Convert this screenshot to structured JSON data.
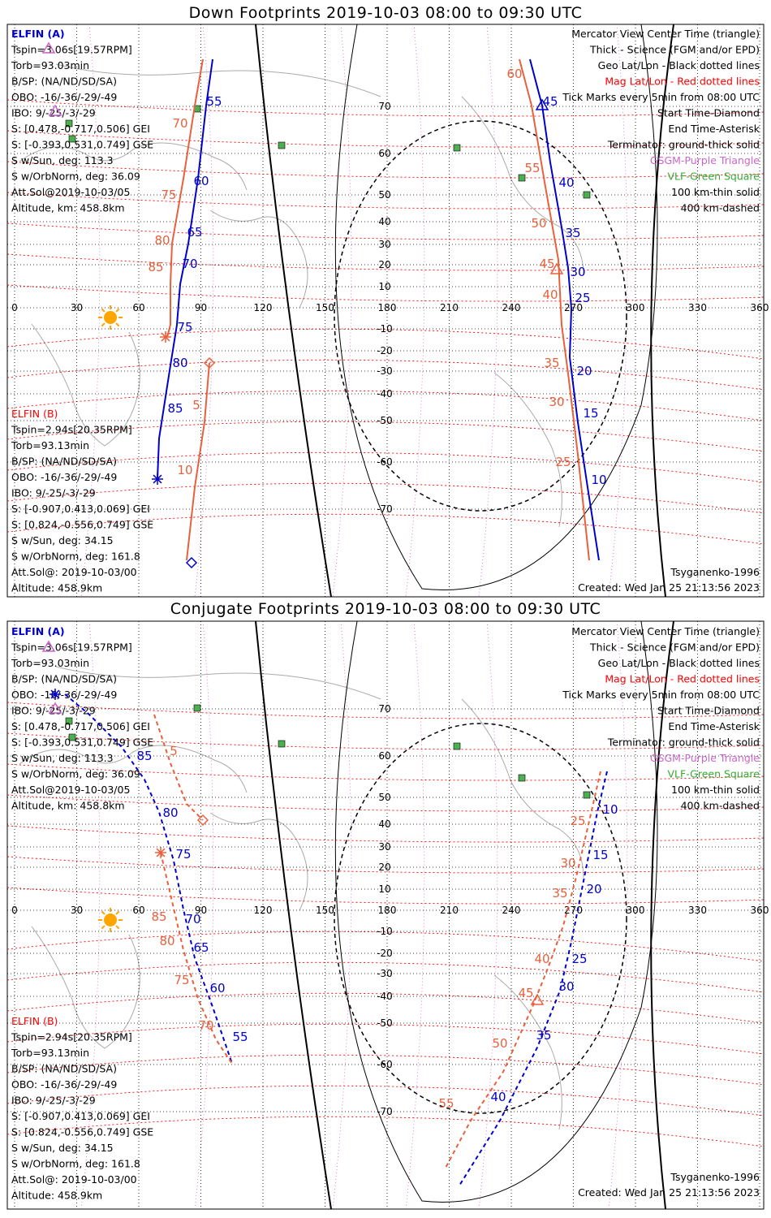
{
  "colors": {
    "sc_a": "#0000cc",
    "sc_b": "#e8603c",
    "geo_grid": "#000000",
    "mag_grid": "#ff0000",
    "gsgm": "#cc66cc",
    "vlf": "#4caf50",
    "sun": "#ffa500",
    "coast": "#aaaaaa"
  },
  "axis": {
    "lon_ticks": [
      "0",
      "30",
      "60",
      "90",
      "120",
      "150",
      "180",
      "210",
      "240",
      "270",
      "300",
      "330",
      "360"
    ],
    "lat_ticks": [
      "70",
      "60",
      "50",
      "40",
      "30",
      "20",
      "10",
      "-10",
      "-20",
      "-30",
      "-40",
      "-50",
      "-60",
      "-70"
    ]
  },
  "panels": [
    {
      "title": "Down Footprints 2019-10-03 08:00 to 09:30 UTC",
      "info_a": [
        "ELFIN (A)",
        "Tspin=3.06s[19.57RPM]",
        "Torb=93.03min",
        "B/SP: (NA/ND/SD/SA)",
        "OBO: -16/-36/-29/-49",
        "IBO: 9/-25/-3/-29",
        "S: [0.478,-0.717,0.506] GEI",
        "S: [-0.393,0.531,0.749] GSE",
        "S w/Sun, deg: 113.3",
        "S w/OrbNorm, deg: 36.09",
        "Att.Sol@2019-10-03/05",
        "Altitude, km: 458.8km"
      ],
      "info_b": [
        "ELFIN (B)",
        "Tspin=2.94s[20.35RPM]",
        "Torb=93.13min",
        "B/SP: (NA/ND/SD/SA)",
        "OBO: -16/-36/-29/-49",
        "IBO: 9/-25/-3/-29",
        "S: [-0.907,0.413,0.069] GEI",
        "S: [0.824,-0.556,0.749] GSE",
        "S w/Sun, deg: 34.15",
        "S w/OrbNorm, deg: 161.8",
        "Att.Sol@: 2019-10-03/00",
        "Altitude: 458.9km"
      ],
      "legend": [
        "Mercator View Center Time (triangle)",
        "Thick - Science (FGM and/or EPD)",
        "Geo Lat/Lon - Black dotted lines",
        "Mag Lat/Lon - Red dotted lines",
        "Tick Marks every 5min from 08:00 UTC",
        "Start Time-Diamond",
        "End Time-Asterisk",
        "Terminator: ground-thick solid",
        "GSGM-Purple Triangle",
        "VLF-Green Square",
        "100 km-thin solid",
        "400 km-dashed"
      ],
      "model": "Tsyganenko-1996",
      "created": "Created: Wed Jan 25 21:13:56 2023",
      "tick_labels_a": [
        "55",
        "60",
        "65",
        "70",
        "75",
        "80",
        "85",
        "45",
        "40",
        "35",
        "30",
        "25",
        "20",
        "15",
        "10"
      ],
      "tick_labels_b": [
        "70",
        "75",
        "80",
        "85",
        "5",
        "10",
        "60",
        "55",
        "50",
        "45",
        "40",
        "35",
        "30",
        "25"
      ]
    },
    {
      "title": "Conjugate Footprints 2019-10-03 08:00 to 09:30 UTC",
      "info_a": [
        "ELFIN (A)",
        "Tspin=3.06s[19.57RPM]",
        "Torb=93.03min",
        "B/SP: (NA/ND/SD/SA)",
        "OBO: -16/-36/-29/-49",
        "IBO: 9/-25/-3/-29",
        "S: [0.478,-0.717,0.506] GEI",
        "S: [-0.393,0.531,0.749] GSE",
        "S w/Sun, deg: 113.3",
        "S w/OrbNorm, deg: 36.09",
        "Att.Sol@2019-10-03/05",
        "Altitude, km: 458.8km"
      ],
      "info_b": [
        "ELFIN (B)",
        "Tspin=2.94s[20.35RPM]",
        "Torb=93.13min",
        "B/SP: (NA/ND/SD/SA)",
        "OBO: -16/-36/-29/-49",
        "IBO: 9/-25/-3/-29",
        "S: [-0.907,0.413,0.069] GEI",
        "S: [0.824,-0.556,0.749] GSE",
        "S w/Sun, deg: 34.15",
        "S w/OrbNorm, deg: 161.8",
        "Att.Sol@: 2019-10-03/00",
        "Altitude: 458.9km"
      ],
      "legend": [
        "Mercator View Center Time (triangle)",
        "Thick - Science (FGM and/or EPD)",
        "Geo Lat/Lon - Black dotted lines",
        "Mag Lat/Lon - Red dotted lines",
        "Tick Marks every 5min from 08:00 UTC",
        "Start Time-Diamond",
        "End Time-Asterisk",
        "Terminator: ground-thick solid",
        "GSGM-Purple Triangle",
        "VLF-Green Square",
        "100 km-thin solid",
        "400 km-dashed"
      ],
      "model": "Tsyganenko-1996",
      "created": "Created: Wed Jan 25 21:13:56 2023",
      "tick_labels_a": [
        "85",
        "80",
        "75",
        "70",
        "65",
        "60",
        "55",
        "10",
        "15",
        "20",
        "25",
        "30",
        "35",
        "40"
      ],
      "tick_labels_b": [
        "5",
        "85",
        "80",
        "75",
        "70",
        "25",
        "30",
        "35",
        "40",
        "45",
        "50",
        "55"
      ]
    }
  ]
}
